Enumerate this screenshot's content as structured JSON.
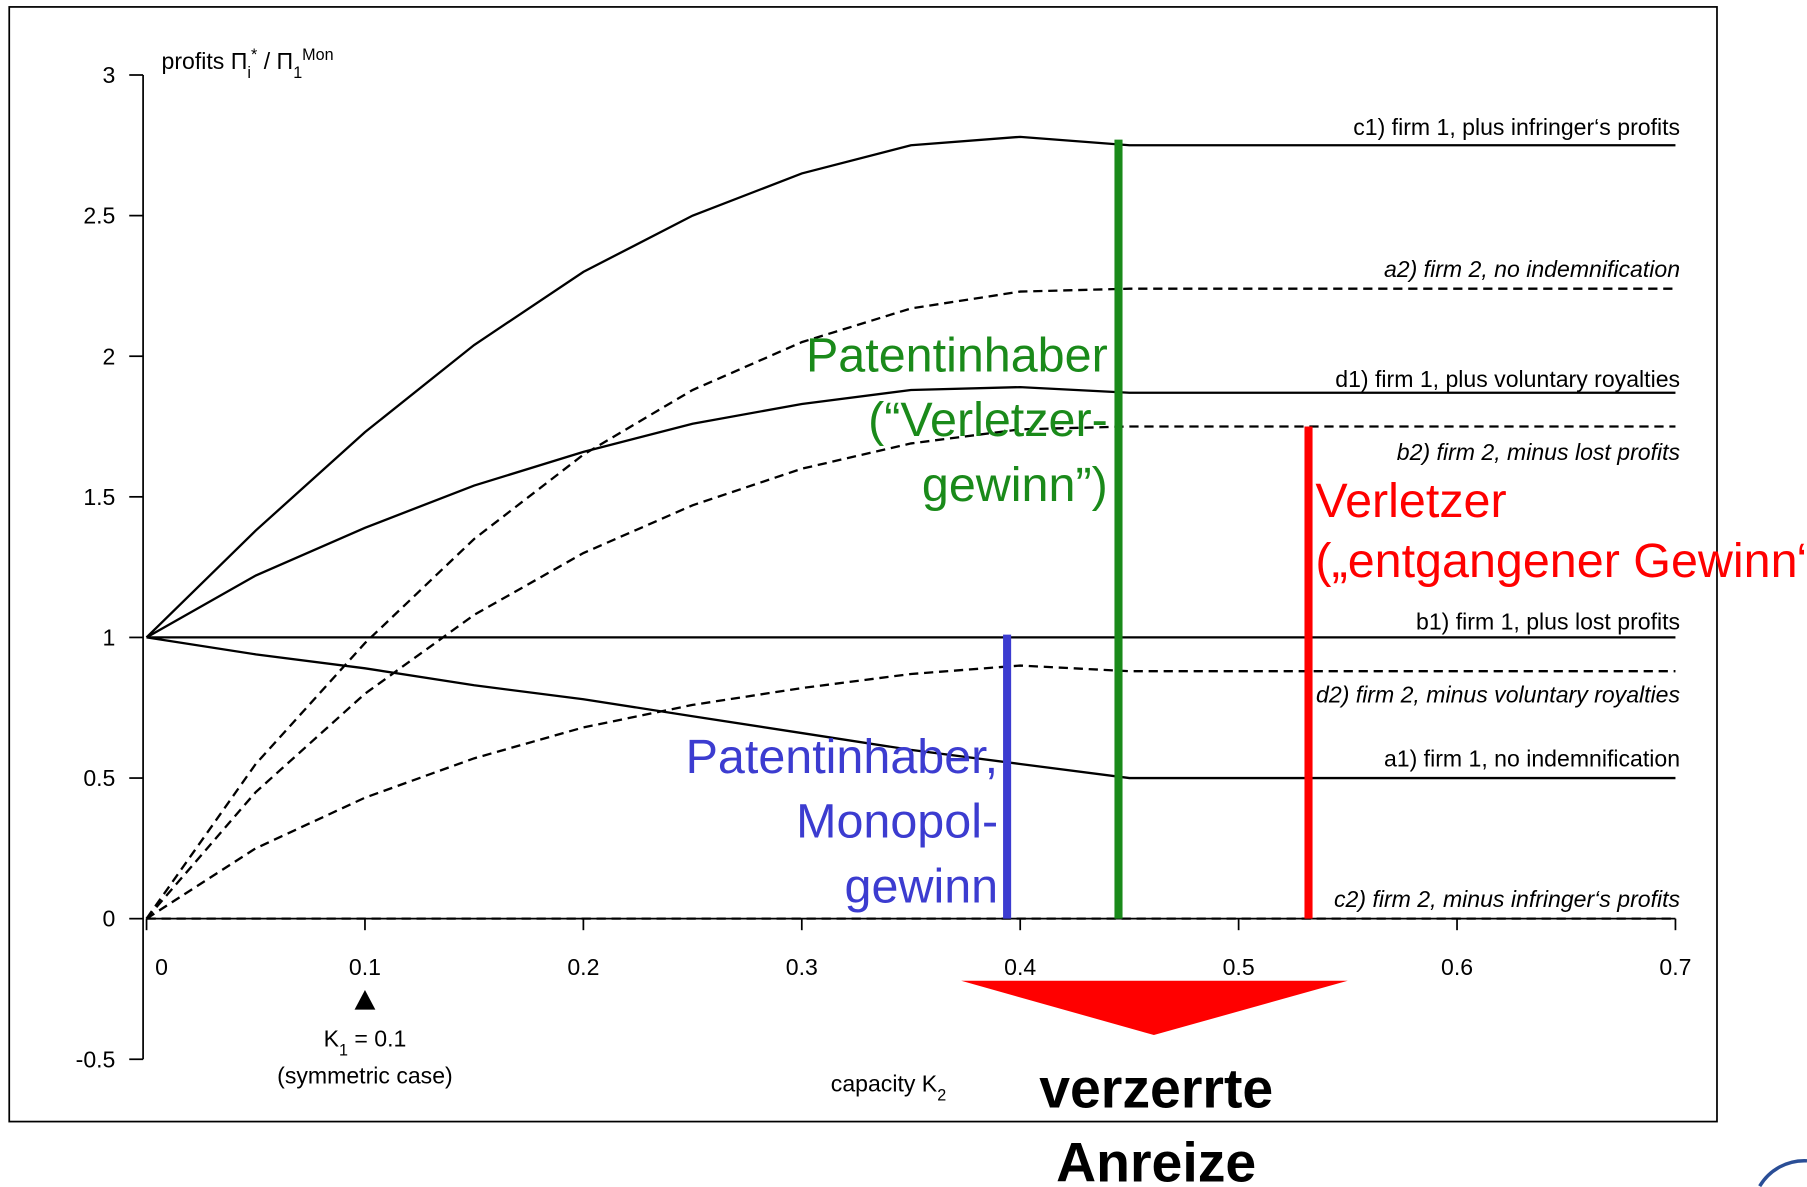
{
  "chart_data": {
    "type": "line",
    "y_label_parts": [
      "profits Π",
      "i",
      "*",
      " / Π",
      "1",
      "Mon"
    ],
    "x_label_parts": [
      "capacity K",
      "2"
    ],
    "x": [
      0,
      0.05,
      0.1,
      0.15,
      0.2,
      0.25,
      0.3,
      0.35,
      0.4,
      0.45,
      0.5,
      0.55,
      0.6,
      0.65,
      0.7
    ],
    "xlim": [
      0,
      0.7
    ],
    "xticks": [
      0,
      0.1,
      0.2,
      0.3,
      0.4,
      0.5,
      0.6,
      0.7
    ],
    "ylim": [
      -0.5,
      3
    ],
    "yticks": [
      -0.5,
      0,
      0.5,
      1,
      1.5,
      2,
      2.5,
      3
    ],
    "series": [
      {
        "name": "c1) firm 1, plus infringer‘s profits",
        "color": "#000000",
        "dashed": false,
        "values": [
          1,
          1.38,
          1.73,
          2.04,
          2.3,
          2.5,
          2.65,
          2.75,
          2.78,
          2.75,
          2.75,
          2.75,
          2.75,
          2.75,
          2.75
        ]
      },
      {
        "name": "a2) firm 2, no indemnification",
        "color": "#000000",
        "dashed": true,
        "values": [
          0,
          0.55,
          0.98,
          1.35,
          1.65,
          1.88,
          2.05,
          2.17,
          2.23,
          2.24,
          2.24,
          2.24,
          2.24,
          2.24,
          2.24
        ]
      },
      {
        "name": "d1) firm 1, plus voluntary royalties",
        "color": "#000000",
        "dashed": false,
        "values": [
          1,
          1.22,
          1.39,
          1.54,
          1.66,
          1.76,
          1.83,
          1.88,
          1.89,
          1.87,
          1.87,
          1.87,
          1.87,
          1.87,
          1.87
        ]
      },
      {
        "name": "b2) firm 2, minus lost profits",
        "color": "#000000",
        "dashed": true,
        "values": [
          0,
          0.45,
          0.8,
          1.08,
          1.3,
          1.47,
          1.6,
          1.69,
          1.74,
          1.75,
          1.75,
          1.75,
          1.75,
          1.75,
          1.75
        ]
      },
      {
        "name": "b1) firm 1, plus lost profits",
        "color": "#000000",
        "dashed": false,
        "values": [
          1,
          1,
          1,
          1,
          1,
          1,
          1,
          1,
          1,
          1,
          1,
          1,
          1,
          1,
          1
        ]
      },
      {
        "name": "d2) firm 2, minus voluntary royalties",
        "color": "#000000",
        "dashed": true,
        "values": [
          0,
          0.25,
          0.43,
          0.57,
          0.68,
          0.76,
          0.82,
          0.87,
          0.9,
          0.88,
          0.88,
          0.88,
          0.88,
          0.88,
          0.88
        ]
      },
      {
        "name": "a1) firm 1, no indemnification",
        "color": "#000000",
        "dashed": false,
        "values": [
          1,
          0.94,
          0.89,
          0.83,
          0.78,
          0.72,
          0.66,
          0.6,
          0.55,
          0.5,
          0.5,
          0.5,
          0.5,
          0.5,
          0.5
        ]
      },
      {
        "name": "c2) firm 2, minus infringer‘s profits",
        "color": "#000000",
        "dashed": true,
        "values": [
          0,
          0,
          0,
          0,
          0,
          0,
          0,
          0,
          0,
          0,
          0,
          0,
          0,
          0,
          0
        ]
      }
    ],
    "highlights": [
      {
        "color": "#1a8a1a",
        "x": 0.445,
        "y0": 0,
        "y1": 2.77,
        "lines": [
          "Patentinhaber",
          "(“Verletzer-",
          "gewinn”)"
        ]
      },
      {
        "color": "#ff0000",
        "x": 0.532,
        "y0": 0,
        "y1": 1.75,
        "lines": [
          "Verletzer",
          "(„entgangener Gewinn“"
        ]
      },
      {
        "color": "#3c3cd0",
        "x": 0.394,
        "y0": 0,
        "y1": 1.01,
        "lines": [
          "Patentinhaber,",
          "Monopol-",
          "gewinn"
        ]
      }
    ],
    "k1_note": {
      "x": 0.1,
      "parts": [
        "K",
        "1",
        " = 0.1"
      ],
      "note": "(symmetric case)"
    },
    "conclusion": [
      "verzerrte",
      "Anreize"
    ]
  }
}
